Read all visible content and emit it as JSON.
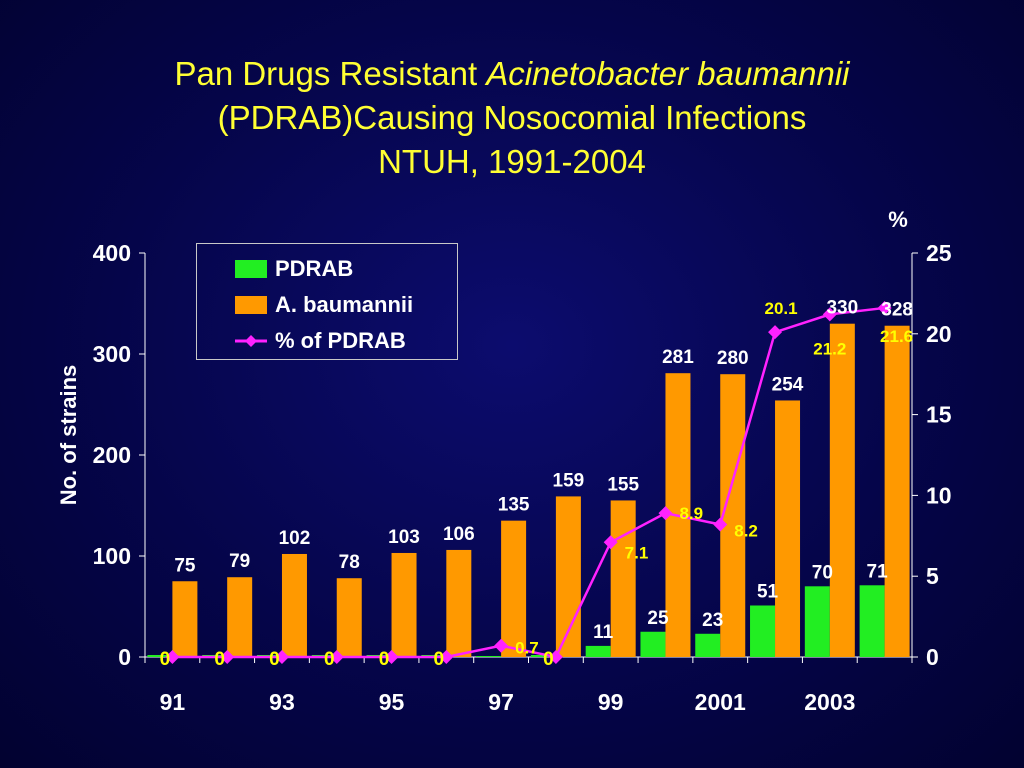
{
  "title": {
    "line1_a": "Pan Drugs Resistant ",
    "line1_b": "Acinetobacter baumannii",
    "line2": "(PDRAB)Causing Nosocomial Infections",
    "line3": "NTUH, 1991-2004"
  },
  "colors": {
    "pdrab": "#22ee22",
    "baumannii": "#ff9900",
    "percent": "#ff22ff",
    "text": "#ffffff",
    "pct_label": "#ffff00"
  },
  "chart_data": {
    "type": "bar",
    "x": [
      1991,
      1992,
      1993,
      1994,
      1995,
      1996,
      1997,
      1998,
      1999,
      2000,
      2001,
      2002,
      2003,
      2004
    ],
    "x_tick_labels": [
      "91",
      "",
      "93",
      "",
      "95",
      "",
      "97",
      "",
      "99",
      "",
      "2001",
      "",
      "2003",
      ""
    ],
    "series": [
      {
        "name": "PDRAB",
        "axis": "left",
        "values": [
          0,
          0,
          0,
          0,
          0,
          0,
          1,
          0,
          11,
          25,
          23,
          51,
          70,
          71
        ],
        "labels": [
          "0",
          "0",
          "0",
          "0",
          "0",
          "0",
          "",
          "0",
          "11",
          "25",
          "23",
          "51",
          "70",
          "71"
        ]
      },
      {
        "name": "A. baumannii",
        "axis": "left",
        "values": [
          75,
          79,
          102,
          78,
          103,
          106,
          135,
          159,
          155,
          281,
          280,
          254,
          330,
          328
        ],
        "labels": [
          "75",
          "79",
          "102",
          "78",
          "103",
          "106",
          "135",
          "159",
          "155",
          "281",
          "280",
          "254",
          "330",
          "328"
        ]
      },
      {
        "name": "% of PDRAB",
        "type": "line",
        "axis": "right",
        "values": [
          0,
          0,
          0,
          0,
          0,
          0,
          0.7,
          0,
          7.1,
          8.9,
          8.2,
          20.1,
          21.2,
          21.6
        ],
        "labels": [
          "",
          "",
          "",
          "",
          "",
          "",
          "0.7",
          "",
          "7.1",
          "8.9",
          "8.2",
          "20.1",
          "21.2",
          "21.6"
        ]
      }
    ],
    "ylabel": "No. of strains",
    "ylim": [
      0,
      400
    ],
    "yticks": [
      0,
      100,
      200,
      300,
      400
    ],
    "y2label": "%",
    "y2lim": [
      0,
      25
    ],
    "y2ticks": [
      0,
      5,
      10,
      15,
      20,
      25
    ],
    "grid": false,
    "legend_position": "top-left"
  }
}
